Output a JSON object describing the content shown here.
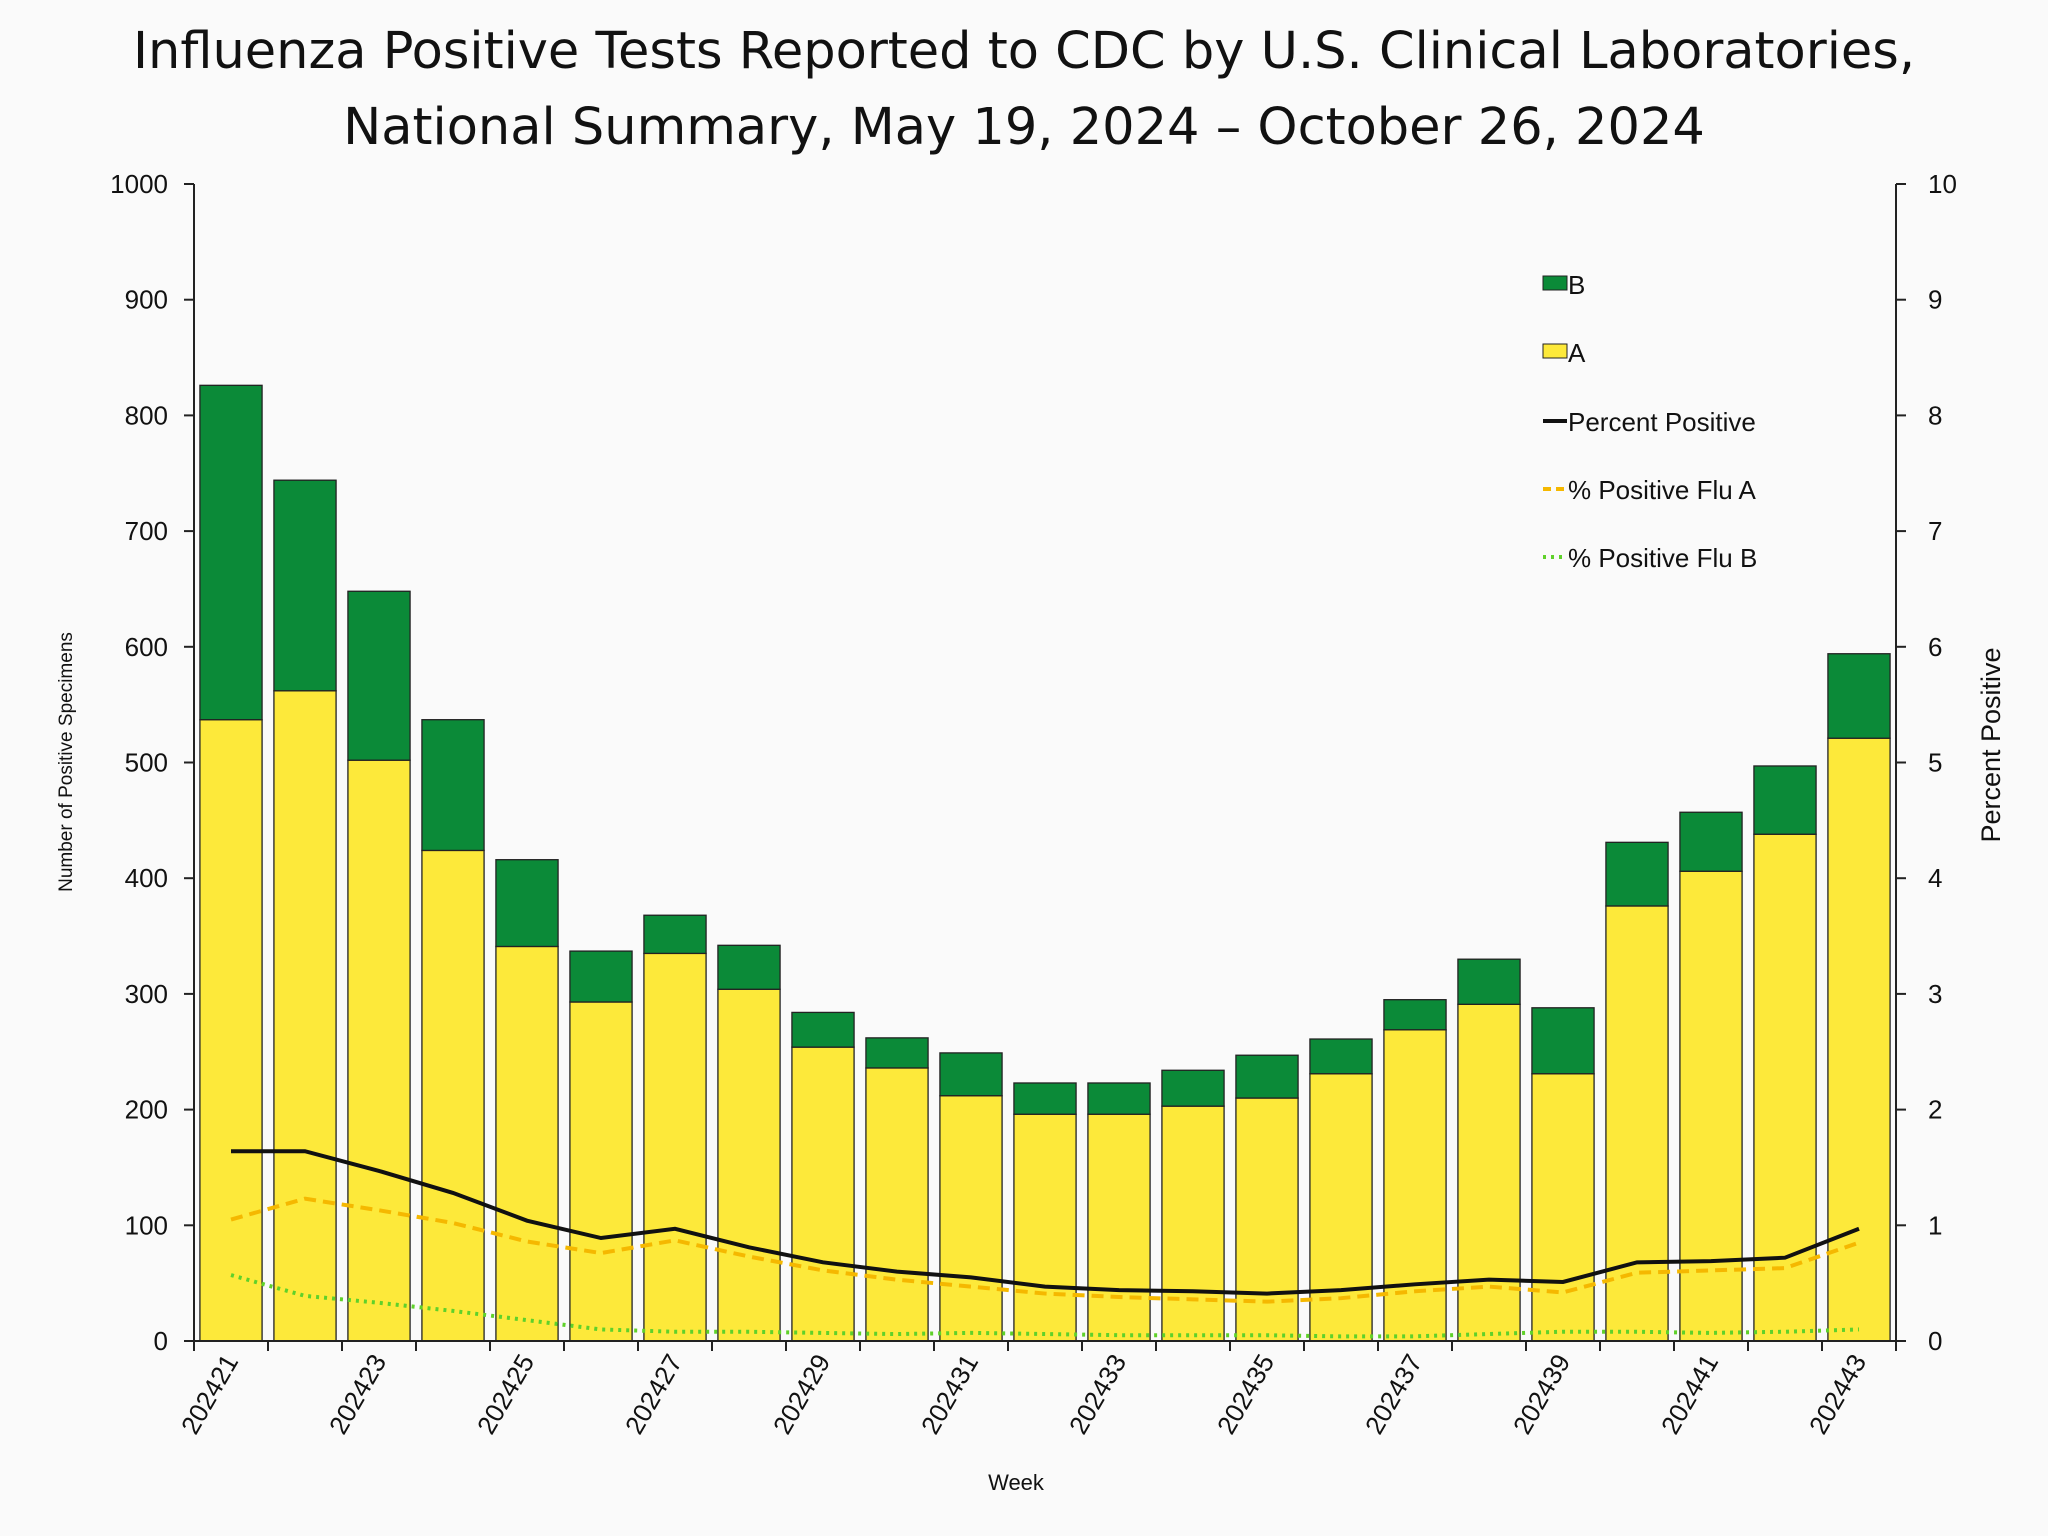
{
  "chart_data": {
    "type": "bar",
    "title_line1": "Influenza Positive Tests Reported to CDC by U.S. Clinical Laboratories,",
    "title_line2": "National Summary, May 19, 2024 – October 26, 2024",
    "xlabel": "Week",
    "ylabel": "Number of Positive Specimens",
    "y2label": "Percent Positive",
    "ylim": [
      0,
      1000
    ],
    "y2lim": [
      0,
      10
    ],
    "yticks": [
      0,
      100,
      200,
      300,
      400,
      500,
      600,
      700,
      800,
      900,
      1000
    ],
    "y2ticks": [
      0,
      1,
      2,
      3,
      4,
      5,
      6,
      7,
      8,
      9,
      10
    ],
    "weeks": [
      202421,
      202422,
      202423,
      202424,
      202425,
      202426,
      202427,
      202428,
      202429,
      202430,
      202431,
      202432,
      202433,
      202434,
      202435,
      202436,
      202437,
      202438,
      202439,
      202440,
      202441,
      202442,
      202443
    ],
    "tick_labels": [
      "202421",
      "202423",
      "202425",
      "202427",
      "202429",
      "202431",
      "202433",
      "202435",
      "202437",
      "202439",
      "202441",
      "202443"
    ],
    "stacked": true,
    "series": [
      {
        "name": "A",
        "kind": "bar",
        "color": "#fde93a",
        "values": [
          537,
          562,
          502,
          424,
          341,
          293,
          335,
          304,
          254,
          236,
          212,
          196,
          196,
          203,
          210,
          231,
          269,
          291,
          231,
          376,
          406,
          438,
          521
        ]
      },
      {
        "name": "B",
        "kind": "bar",
        "color": "#0b8a38",
        "values": [
          289,
          182,
          146,
          113,
          75,
          44,
          33,
          38,
          30,
          26,
          37,
          27,
          27,
          31,
          37,
          30,
          26,
          39,
          57,
          55,
          51,
          59,
          73
        ]
      },
      {
        "name": "Percent Positive",
        "kind": "line",
        "axis": "right",
        "color": "#111111",
        "values": [
          1.64,
          1.64,
          1.47,
          1.28,
          1.04,
          0.89,
          0.97,
          0.81,
          0.68,
          0.6,
          0.55,
          0.47,
          0.44,
          0.43,
          0.41,
          0.44,
          0.49,
          0.53,
          0.51,
          0.68,
          0.69,
          0.72,
          0.97
        ]
      },
      {
        "name": "% Positive Flu A",
        "kind": "line",
        "style": "dashed",
        "axis": "right",
        "color": "#f5b800",
        "values": [
          1.05,
          1.23,
          1.13,
          1.02,
          0.86,
          0.76,
          0.87,
          0.73,
          0.61,
          0.53,
          0.47,
          0.41,
          0.38,
          0.36,
          0.34,
          0.37,
          0.43,
          0.47,
          0.42,
          0.59,
          0.61,
          0.63,
          0.85
        ]
      },
      {
        "name": "% Positive Flu B",
        "kind": "line",
        "style": "dotted",
        "axis": "right",
        "color": "#5fd12a",
        "values": [
          0.57,
          0.39,
          0.33,
          0.26,
          0.18,
          0.1,
          0.08,
          0.08,
          0.07,
          0.06,
          0.07,
          0.06,
          0.05,
          0.05,
          0.05,
          0.04,
          0.04,
          0.06,
          0.08,
          0.08,
          0.07,
          0.08,
          0.1
        ]
      }
    ],
    "legend_position": "top-right",
    "grid": false
  }
}
